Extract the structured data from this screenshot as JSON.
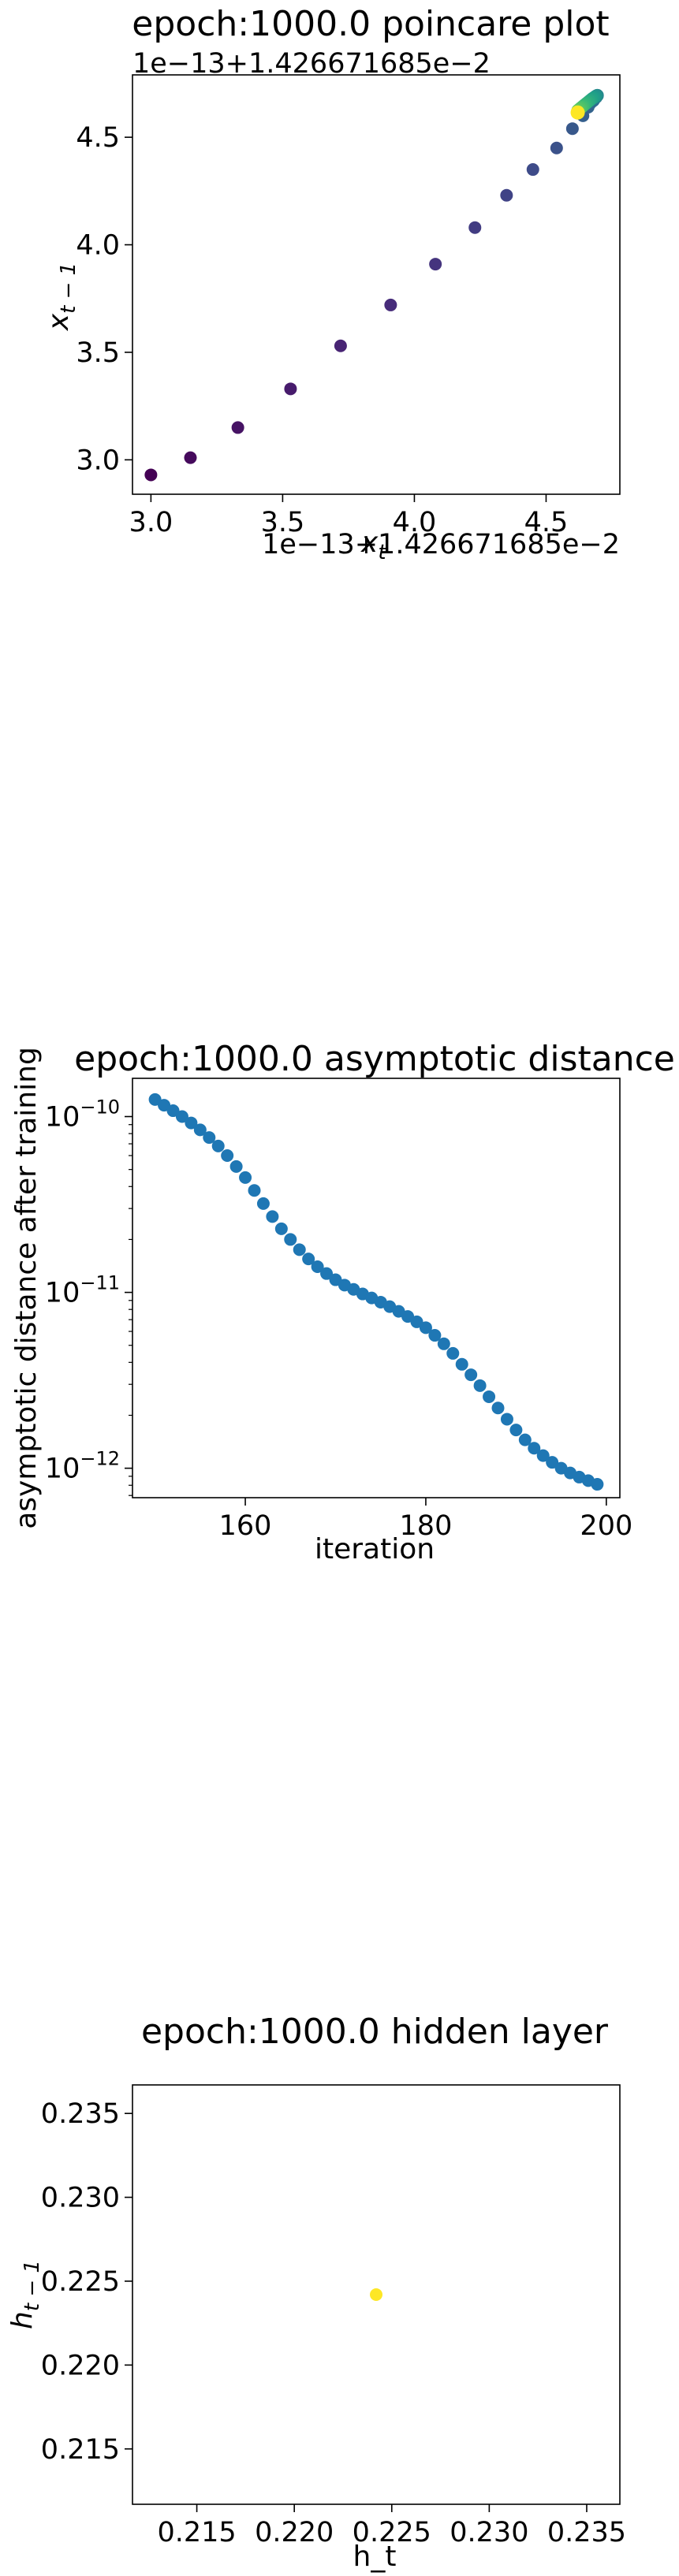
{
  "chart_data": [
    {
      "type": "scatter",
      "title": "epoch:1000.0 poincare plot",
      "xlabel": "x_t",
      "ylabel": "x_{t-1}",
      "x_offset_label": "1e−13+1.426671685e−2",
      "y_offset_label": "1e−13+1.426671685e−2",
      "xlim": [
        2.93,
        4.78
      ],
      "ylim": [
        2.84,
        4.79
      ],
      "xticks": [
        "3.0",
        "3.5",
        "4.0",
        "4.5"
      ],
      "yticks": [
        "3.0",
        "3.5",
        "4.0",
        "4.5"
      ],
      "color_scale": "viridis",
      "x": [
        3.0,
        3.15,
        3.33,
        3.53,
        3.72,
        3.91,
        4.08,
        4.23,
        4.35,
        4.45,
        4.54,
        4.6,
        4.64,
        4.66,
        4.67,
        4.68,
        4.685,
        4.69,
        4.692,
        4.694,
        4.695,
        4.695,
        4.694,
        4.692,
        4.69,
        4.687,
        4.684,
        4.68,
        4.675,
        4.67,
        4.665,
        4.66,
        4.655,
        4.65,
        4.645,
        4.64,
        4.635,
        4.63,
        4.625,
        4.62
      ],
      "y": [
        2.93,
        3.01,
        3.15,
        3.33,
        3.53,
        3.72,
        3.91,
        4.08,
        4.23,
        4.35,
        4.45,
        4.54,
        4.6,
        4.64,
        4.66,
        4.67,
        4.68,
        4.685,
        4.69,
        4.692,
        4.694,
        4.695,
        4.695,
        4.694,
        4.692,
        4.69,
        4.687,
        4.684,
        4.68,
        4.675,
        4.67,
        4.665,
        4.66,
        4.655,
        4.65,
        4.645,
        4.64,
        4.635,
        4.63,
        4.625
      ],
      "grid": false
    },
    {
      "type": "scatter",
      "title": "epoch:1000.0 asymptotic distance",
      "xlabel": "iteration",
      "ylabel": "asymptotic distance after training",
      "yscale": "log",
      "xlim": [
        147.5,
        201.5
      ],
      "ylim": [
        6.8e-13,
        1.65e-10
      ],
      "xticks": [
        "160",
        "180",
        "200"
      ],
      "ytick_values": [
        1e-10,
        1e-11,
        1e-12
      ],
      "color": "#1f77b4",
      "x": [
        150,
        151,
        152,
        153,
        154,
        155,
        156,
        157,
        158,
        159,
        160,
        161,
        162,
        163,
        164,
        165,
        166,
        167,
        168,
        169,
        170,
        171,
        172,
        173,
        174,
        175,
        176,
        177,
        178,
        179,
        180,
        181,
        182,
        183,
        184,
        185,
        186,
        187,
        188,
        189,
        190,
        191,
        192,
        193,
        194,
        195,
        196,
        197,
        198,
        199
      ],
      "y": [
        1.25e-10,
        1.16e-10,
        1.08e-10,
        1e-10,
        9.2e-11,
        8.4e-11,
        7.6e-11,
        6.8e-11,
        6e-11,
        5.2e-11,
        4.5e-11,
        3.8e-11,
        3.2e-11,
        2.7e-11,
        2.3e-11,
        2e-11,
        1.75e-11,
        1.55e-11,
        1.4e-11,
        1.28e-11,
        1.18e-11,
        1.1e-11,
        1.04e-11,
        9.8e-12,
        9.3e-12,
        8.8e-12,
        8.3e-12,
        7.8e-12,
        7.3e-12,
        6.8e-12,
        6.3e-12,
        5.7e-12,
        5.1e-12,
        4.5e-12,
        3.9e-12,
        3.4e-12,
        2.95e-12,
        2.55e-12,
        2.2e-12,
        1.9e-12,
        1.65e-12,
        1.45e-12,
        1.3e-12,
        1.18e-12,
        1.08e-12,
        1e-12,
        9.4e-13,
        8.9e-13,
        8.5e-13,
        8.1e-13
      ],
      "grid": false
    },
    {
      "type": "scatter",
      "title": "epoch:1000.0 hidden layer",
      "xlabel": "h_t",
      "ylabel": "h_{t-1}",
      "xlim": [
        0.2117,
        0.2367
      ],
      "ylim": [
        0.2117,
        0.2367
      ],
      "xticks": [
        "0.215",
        "0.220",
        "0.225",
        "0.230",
        "0.235"
      ],
      "yticks": [
        "0.215",
        "0.220",
        "0.225",
        "0.230",
        "0.235"
      ],
      "color": "#fde725",
      "x": [
        0.2242
      ],
      "y": [
        0.2242
      ],
      "grid": false
    }
  ]
}
